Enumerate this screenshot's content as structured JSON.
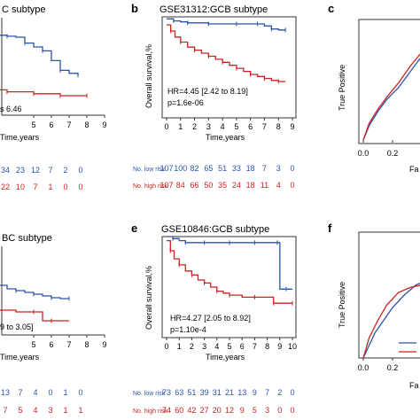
{
  "colors": {
    "low": "#2b55a8",
    "high": "#cc2222",
    "axis": "#333333"
  },
  "chart_data": [
    {
      "id": "a",
      "type": "line",
      "title": "C subtype",
      "xlabel": "Time,years",
      "ylabel": "",
      "xlim": [
        0,
        9
      ],
      "ylim": [
        0,
        1
      ],
      "xticks": [
        5,
        6,
        7,
        8,
        9
      ],
      "series": [
        {
          "name": "low",
          "x": [
            0,
            0.5,
            1,
            1.5,
            2,
            2.5,
            3,
            3.5,
            4,
            4.5,
            5,
            5.5,
            6,
            6.5,
            7,
            7.5
          ],
          "y": [
            0.94,
            0.9,
            0.88,
            0.86,
            0.84,
            0.82,
            0.82,
            0.81,
            0.8,
            0.74,
            0.7,
            0.66,
            0.56,
            0.46,
            0.43,
            0.41
          ]
        },
        {
          "name": "high",
          "x": [
            0,
            0.5,
            1,
            1.5,
            2,
            2.5,
            3,
            3.5,
            4,
            5,
            6,
            6.5,
            7,
            8
          ],
          "y": [
            0.64,
            0.56,
            0.46,
            0.36,
            0.32,
            0.28,
            0.26,
            0.24,
            0.24,
            0.22,
            0.22,
            0.2,
            0.2,
            0.2
          ]
        }
      ],
      "annotation": "s 6.46",
      "risk_table": {
        "low": [
          "34",
          "23",
          "12",
          "7",
          "2",
          "0"
        ],
        "high": [
          "22",
          "10",
          "7",
          "1",
          "0",
          "0"
        ]
      }
    },
    {
      "id": "b",
      "type": "line",
      "title": "GSE31312:GCB subtype",
      "xlabel": "Time,years",
      "ylabel": "Overall survival,%",
      "xlim": [
        0,
        9
      ],
      "ylim": [
        0,
        1
      ],
      "xticks": [
        0,
        1,
        2,
        3,
        4,
        5,
        6,
        7,
        8,
        9
      ],
      "series": [
        {
          "name": "low",
          "x": [
            0,
            0.5,
            1,
            1.5,
            2,
            3,
            4,
            5,
            6,
            6.5,
            7,
            7.5,
            8,
            8.5
          ],
          "y": [
            0.98,
            0.96,
            0.95,
            0.94,
            0.94,
            0.93,
            0.93,
            0.93,
            0.93,
            0.93,
            0.91,
            0.88,
            0.87,
            0.87
          ]
        },
        {
          "name": "high",
          "x": [
            0,
            0.3,
            0.6,
            1,
            1.5,
            2,
            2.5,
            3,
            3.5,
            4,
            4.5,
            5,
            5.5,
            6,
            6.5,
            7,
            7.5,
            8,
            8.5
          ],
          "y": [
            0.92,
            0.86,
            0.8,
            0.75,
            0.7,
            0.67,
            0.64,
            0.61,
            0.58,
            0.55,
            0.52,
            0.49,
            0.46,
            0.43,
            0.41,
            0.39,
            0.37,
            0.36,
            0.36
          ]
        }
      ],
      "annotation_lines": [
        "HR=4.45 [2.42 to 8.19]",
        "p=1.6e-06"
      ],
      "risk_table": {
        "low_label": "No. low risk",
        "high_label": "No. high risk",
        "low": [
          "107",
          "100",
          "82",
          "65",
          "51",
          "33",
          "18",
          "7",
          "3",
          "0"
        ],
        "high": [
          "107",
          "84",
          "66",
          "50",
          "35",
          "24",
          "18",
          "11",
          "4",
          "0"
        ]
      }
    },
    {
      "id": "c",
      "type": "line",
      "title": "",
      "xlabel": "Fa",
      "ylabel": "True Positive",
      "xlim": [
        0,
        1
      ],
      "ylim": [
        0,
        1
      ],
      "xticks": [
        "0.0",
        "0.2",
        "0.4"
      ],
      "series": [
        {
          "name": "roc-blue",
          "x": [
            0.0,
            0.04,
            0.1,
            0.16,
            0.24,
            0.3,
            0.36,
            0.42,
            0.48,
            0.52
          ],
          "y": [
            0.0,
            0.12,
            0.24,
            0.34,
            0.44,
            0.54,
            0.64,
            0.74,
            0.82,
            0.88
          ]
        },
        {
          "name": "roc-red",
          "x": [
            0.0,
            0.04,
            0.1,
            0.16,
            0.24,
            0.32,
            0.4,
            0.46,
            0.52
          ],
          "y": [
            0.0,
            0.14,
            0.26,
            0.36,
            0.48,
            0.62,
            0.74,
            0.84,
            0.94
          ]
        }
      ]
    },
    {
      "id": "d",
      "type": "line",
      "title": "BC subtype",
      "xlabel": "Time,years",
      "ylabel": "",
      "xlim": [
        0,
        9
      ],
      "ylim": [
        0,
        1
      ],
      "xticks": [
        5,
        6,
        7,
        8,
        9
      ],
      "series": [
        {
          "name": "low",
          "x": [
            0,
            1,
            2,
            3,
            3.5,
            4,
            4.5,
            5,
            5.5,
            6,
            6.5,
            7
          ],
          "y": [
            0.72,
            0.66,
            0.6,
            0.56,
            0.52,
            0.5,
            0.48,
            0.46,
            0.44,
            0.42,
            0.41,
            0.41
          ]
        },
        {
          "name": "high",
          "x": [
            0,
            1,
            2,
            3,
            4,
            5,
            5.5,
            6,
            7
          ],
          "y": [
            0.34,
            0.3,
            0.28,
            0.28,
            0.26,
            0.26,
            0.16,
            0.16,
            0.16
          ]
        }
      ],
      "annotation": "9 to 3.05]",
      "risk_table": {
        "low": [
          "13",
          "7",
          "4",
          "0",
          "1",
          "0"
        ],
        "high": [
          "7",
          "5",
          "4",
          "3",
          "1",
          "1"
        ]
      }
    },
    {
      "id": "e",
      "type": "line",
      "title": "GSE10846:GCB subtype",
      "xlabel": "Time,years",
      "ylabel": "Overall survival,%",
      "xlim": [
        0,
        10
      ],
      "ylim": [
        0,
        1
      ],
      "xticks": [
        0,
        1,
        2,
        3,
        4,
        5,
        6,
        7,
        8,
        9,
        10
      ],
      "series": [
        {
          "name": "low",
          "x": [
            0,
            0.5,
            1,
            1.5,
            2,
            3,
            4,
            5,
            6,
            7,
            8,
            8.8,
            9,
            9.5,
            10
          ],
          "y": [
            1.0,
            0.98,
            0.96,
            0.94,
            0.94,
            0.94,
            0.94,
            0.94,
            0.94,
            0.94,
            0.94,
            0.94,
            0.48,
            0.48,
            0.48
          ]
        },
        {
          "name": "high",
          "x": [
            0,
            0.3,
            0.6,
            1,
            1.5,
            2,
            2.5,
            3,
            3.5,
            4,
            4.5,
            5,
            6,
            7,
            8,
            8.5,
            9,
            10
          ],
          "y": [
            0.96,
            0.86,
            0.78,
            0.72,
            0.66,
            0.62,
            0.57,
            0.54,
            0.5,
            0.46,
            0.44,
            0.42,
            0.4,
            0.4,
            0.4,
            0.34,
            0.34,
            0.34
          ]
        }
      ],
      "annotation_lines": [
        "HR=4.27 [2.05 to 8.92]",
        "p=1.10e-4"
      ],
      "risk_table": {
        "low_label": "No. low risk",
        "high_label": "No. high risk",
        "low": [
          "73",
          "63",
          "51",
          "39",
          "31",
          "21",
          "13",
          "9",
          "7",
          "2",
          "0"
        ],
        "high": [
          "74",
          "60",
          "42",
          "27",
          "20",
          "12",
          "9",
          "5",
          "3",
          "0",
          "0"
        ]
      }
    },
    {
      "id": "f",
      "type": "line",
      "title": "",
      "xlabel": "Fa",
      "ylabel": "True Positive",
      "xlim": [
        0,
        1
      ],
      "ylim": [
        0,
        1
      ],
      "xticks": [
        "0.0",
        "0.2",
        "0.4"
      ],
      "series": [
        {
          "name": "roc-blue",
          "x": [
            0.0,
            0.04,
            0.08,
            0.14,
            0.2,
            0.28,
            0.36,
            0.44,
            0.5
          ],
          "y": [
            0.0,
            0.1,
            0.2,
            0.3,
            0.4,
            0.5,
            0.58,
            0.62,
            0.64
          ]
        },
        {
          "name": "roc-red",
          "x": [
            0.0,
            0.04,
            0.1,
            0.16,
            0.24,
            0.32,
            0.4,
            0.46,
            0.52
          ],
          "y": [
            0.0,
            0.16,
            0.3,
            0.42,
            0.52,
            0.56,
            0.58,
            0.6,
            0.62
          ]
        }
      ]
    }
  ]
}
